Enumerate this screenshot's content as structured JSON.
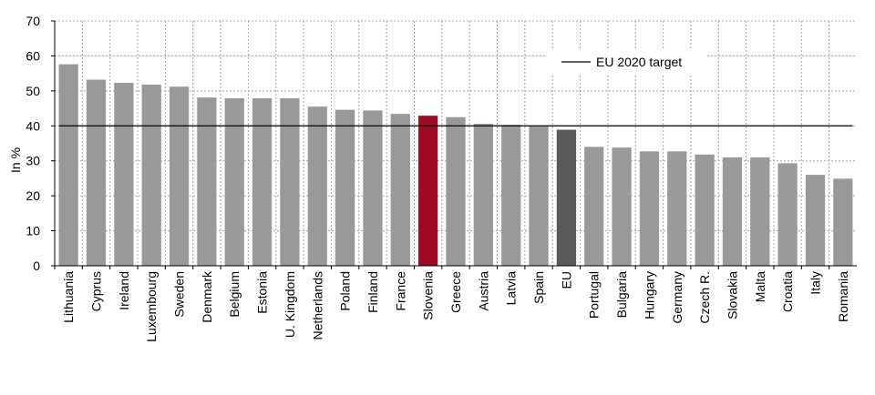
{
  "chart_data": {
    "type": "bar",
    "ylabel": "In %",
    "ylim": [
      0,
      70
    ],
    "yticks": [
      0,
      10,
      20,
      30,
      40,
      50,
      60,
      70
    ],
    "grid": true,
    "legend_position": "top-right",
    "categories": [
      "Lithuania",
      "Cyprus",
      "Ireland",
      "Luxembourg",
      "Sweden",
      "Denmark",
      "Belgium",
      "Estonia",
      "U. Kingdom",
      "Netherlands",
      "Poland",
      "Finland",
      "France",
      "Slovenia",
      "Greece",
      "Austria",
      "Latvia",
      "Spain",
      "EU",
      "Portugal",
      "Bulgaria",
      "Hungary",
      "Germany",
      "Czech R.",
      "Slovakia",
      "Malta",
      "Croatia",
      "Italy",
      "Romania"
    ],
    "values": [
      57.6,
      53.2,
      52.3,
      51.8,
      51.2,
      48.1,
      47.9,
      47.9,
      47.9,
      45.5,
      44.6,
      44.4,
      43.4,
      42.9,
      42.5,
      40.6,
      40.3,
      39.8,
      38.9,
      34.0,
      33.8,
      32.7,
      32.7,
      31.8,
      31.0,
      31.0,
      29.3,
      26.0,
      24.9
    ],
    "target": {
      "label": "EU 2020 target",
      "value": 40
    },
    "colors": {
      "default": "#999999",
      "highlight": "#9d0a22",
      "eu": "#595959",
      "grid": "#a6a6a6",
      "target": "#000000"
    },
    "highlight_categories": {
      "Slovenia": "highlight",
      "EU": "eu"
    }
  }
}
